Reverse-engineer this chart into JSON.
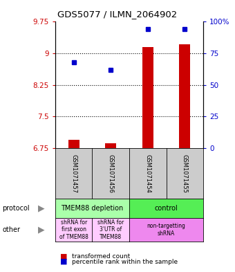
{
  "title": "GDS5077 / ILMN_2064902",
  "samples": [
    "GSM1071457",
    "GSM1071456",
    "GSM1071454",
    "GSM1071455"
  ],
  "bar_values": [
    6.95,
    6.87,
    9.15,
    9.22
  ],
  "bar_bottom": 6.75,
  "percentile_values": [
    68,
    62,
    94,
    94
  ],
  "ylim_left": [
    6.75,
    9.75
  ],
  "ylim_right": [
    0,
    100
  ],
  "yticks_left": [
    6.75,
    7.5,
    8.25,
    9.0,
    9.75
  ],
  "ytick_labels_left": [
    "6.75",
    "7.5",
    "8.25",
    "9",
    "9.75"
  ],
  "yticks_right": [
    0,
    25,
    50,
    75,
    100
  ],
  "ytick_labels_right": [
    "0",
    "25",
    "50",
    "75",
    "100%"
  ],
  "hgrid_values": [
    7.5,
    8.25,
    9.0
  ],
  "bar_color": "#cc0000",
  "dot_color": "#0000cc",
  "protocol_groups": [
    {
      "label": "TMEM88 depletion",
      "cols": [
        0,
        1
      ],
      "color": "#aaffaa"
    },
    {
      "label": "control",
      "cols": [
        2,
        3
      ],
      "color": "#55ee55"
    }
  ],
  "other_groups": [
    {
      "label": "shRNA for\nfirst exon\nof TMEM88",
      "cols": [
        0
      ],
      "color": "#ffccff"
    },
    {
      "label": "shRNA for\n3'UTR of\nTMEM88",
      "cols": [
        1
      ],
      "color": "#ffccff"
    },
    {
      "label": "non-targetting\nshRNA",
      "cols": [
        2,
        3
      ],
      "color": "#ee88ee"
    }
  ],
  "legend_bar_label": "transformed count",
  "legend_dot_label": "percentile rank within the sample",
  "left_label_color": "#cc0000",
  "right_label_color": "#0000cc",
  "protocol_label": "protocol",
  "other_label": "other",
  "sample_box_color": "#cccccc",
  "fig_width": 3.4,
  "fig_height": 3.93,
  "dpi": 100
}
